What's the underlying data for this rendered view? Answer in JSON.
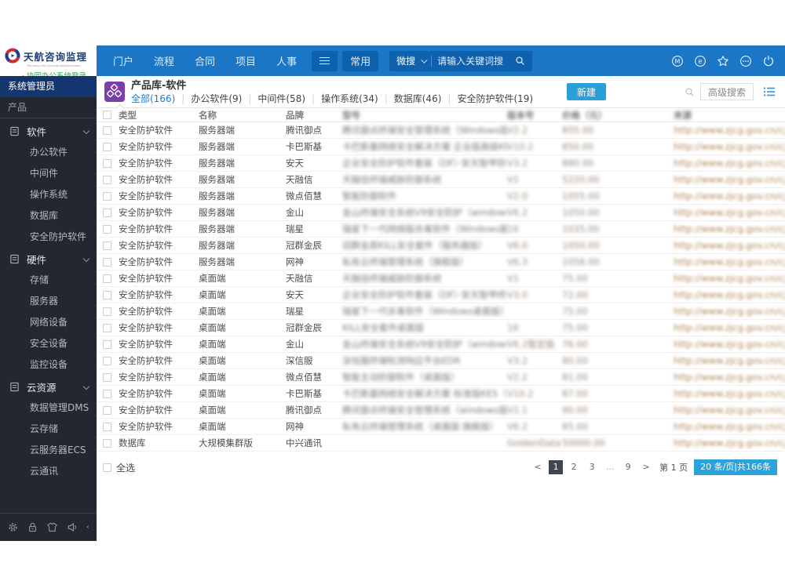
{
  "colors": {
    "topbar": "#1b76c6",
    "topbar_active": "#0e61ac",
    "accent_button": "#2a9fd8",
    "pagination_chip": "#2aa3dc",
    "pagination_active": "#3d4651",
    "sidebar_bg": "#23272f",
    "sidebar_role_bg": "#14366e",
    "app_icon_purple": "#7b3fa8",
    "tab_active": "#1a7bd0",
    "logo_green": "#3aa55a"
  },
  "logo": {
    "title": "天航咨询监理",
    "subtitle": "Tianhang Info Consulting&Supervision",
    "login_link": "· 协同办公系统登录"
  },
  "topbar": {
    "nav": [
      "门户",
      "流程",
      "合同",
      "项目",
      "人事"
    ],
    "quick_menu": "常用",
    "search_engine": "微搜",
    "search_placeholder": "请输入关键词搜",
    "icons": [
      "m-circle",
      "message-circle",
      "favorite-star",
      "more-circle",
      "power"
    ]
  },
  "sidebar": {
    "role": "系统管理员",
    "section": "产品",
    "groups": [
      {
        "label": "软件",
        "items": [
          "办公软件",
          "中间件",
          "操作系统",
          "数据库",
          "安全防护软件"
        ]
      },
      {
        "label": "硬件",
        "items": [
          "存储",
          "服务器",
          "网络设备",
          "安全设备",
          "监控设备"
        ]
      },
      {
        "label": "云资源",
        "items": [
          "数据管理DMS",
          "云存储",
          "云服务器ECS",
          "云通讯"
        ]
      }
    ],
    "footer_icons": [
      "settings-gear",
      "lock",
      "theme-shirt",
      "volume"
    ]
  },
  "content": {
    "title": "产品库-软件",
    "tabs": [
      {
        "label": "全部(166)",
        "active": true
      },
      {
        "label": "办公软件(9)",
        "active": false
      },
      {
        "label": "中间件(58)",
        "active": false
      },
      {
        "label": "操作系统(34)",
        "active": false
      },
      {
        "label": "数据库(46)",
        "active": false
      },
      {
        "label": "安全防护软件(19)",
        "active": false
      }
    ],
    "toolbar": {
      "new_button": "新建",
      "advanced_search": "高级搜索"
    },
    "table": {
      "headers": [
        {
          "label": "类型",
          "blurred": false
        },
        {
          "label": "名称",
          "blurred": false
        },
        {
          "label": "品牌",
          "blurred": false
        },
        {
          "label": "型号",
          "blurred": true
        },
        {
          "label": "版本号",
          "blurred": true
        },
        {
          "label": "价格（元）",
          "blurred": true
        },
        {
          "label": "来源",
          "blurred": true
        }
      ],
      "rows": [
        [
          "安全防护软件",
          "服务器端",
          "腾讯御点",
          "腾讯御点终端安全管理系统（Windows版）",
          "V2.2",
          "855.00",
          "http://www.zjcg.gov.cn/cjqj/"
        ],
        [
          "安全防护软件",
          "服务器端",
          "卡巴斯基",
          "卡巴斯基网络安全解决方案 企业版高级KES/KSV...",
          "V10.2",
          "850.00",
          "http://www.zjcg.gov.cn/cjqj/"
        ],
        [
          "安全防护软件",
          "服务器端",
          "安天",
          "企业安全防护软件套装（DF）·安天智甲防护套装",
          "V3.2",
          "880.00",
          "http://www.zjcg.gov.cn/cjqj/"
        ],
        [
          "安全防护软件",
          "服务器端",
          "天融信",
          "天融信终端威胁防御系统",
          "V1",
          "5220.00",
          "http://www.zjcg.gov.cn/cjqj/"
        ],
        [
          "安全防护软件",
          "服务器端",
          "微点佰慧",
          "智能防御软件",
          "V2.0",
          "1055.00",
          "http://www.zjcg.gov.cn/cjqj/"
        ],
        [
          "安全防护软件",
          "服务器端",
          "金山",
          "金山终端安全系统V9安全防护（windows服务器版）",
          "V6.2",
          "1050.00",
          "http://www.zjcg.gov.cn/cjqj/"
        ],
        [
          "安全防护软件",
          "服务器端",
          "瑞星",
          "瑞星下一代网络版杀毒软件（Windows服务器版）",
          "16",
          "1035.00",
          "http://www.zjcg.gov.cn/cjqj/"
        ],
        [
          "安全防护软件",
          "服务器端",
          "冠群金辰",
          "冠群金辰KILL安全套件（服务器版）",
          "V6.0",
          "1050.00",
          "http://www.zjcg.gov.cn/cjqj/"
        ],
        [
          "安全防护软件",
          "服务器端",
          "网神",
          "私有云终端管理系统（旗舰版）",
          "V6.3",
          "1058.00",
          "http://www.zjcg.gov.cn/cjqj/"
        ],
        [
          "安全防护软件",
          "桌面端",
          "天融信",
          "天融信终端威胁防御系统",
          "V1",
          "75.00",
          "http://www.zjcg.gov.cn/cjqj/"
        ],
        [
          "安全防护软件",
          "桌面端",
          "安天",
          "企业安全防护软件套装（DF）·安天智甲终端版",
          "V3.0",
          "72.00",
          "http://www.zjcg.gov.cn/cjqj/"
        ],
        [
          "安全防护软件",
          "桌面端",
          "瑞星",
          "瑞星下一代杀毒软件（Windows桌面版）",
          "",
          "75.00",
          "http://www.zjcg.gov.cn/cjqj/"
        ],
        [
          "安全防护软件",
          "桌面端",
          "冠群金辰",
          "KILL安全套件桌面版",
          "16",
          "75.00",
          "http://www.zjcg.gov.cn/cjqj/"
        ],
        [
          "安全防护软件",
          "桌面端",
          "金山",
          "金山终端安全系统V9安全防护（windows桌面版）",
          "V6.2暂定版",
          "76.00",
          "http://www.zjcg.gov.cn/cjqj/"
        ],
        [
          "安全防护软件",
          "桌面端",
          "深信服",
          "深信服终端检测响应平台EDR",
          "V3.2",
          "80.00",
          "http://www.zjcg.gov.cn/cjqj/"
        ],
        [
          "安全防护软件",
          "桌面端",
          "微点佰慧",
          "智能主动防御软件（桌面版）",
          "V2.2",
          "81.00",
          "http://www.zjcg.gov.cn/cjqj/"
        ],
        [
          "安全防护软件",
          "桌面端",
          "卡巴斯基",
          "卡巴斯基网络安全解决方案 标准版KES（桌面）· KSS...",
          "V10.2",
          "87.00",
          "http://www.zjcg.gov.cn/cjqj/"
        ],
        [
          "安全防护软件",
          "桌面端",
          "腾讯御点",
          "腾讯御点终端安全管理系统（windows版）· V2.2",
          "V2.1",
          "90.00",
          "http://www.zjcg.gov.cn/cjqj/"
        ],
        [
          "安全防护软件",
          "桌面端",
          "网神",
          "私有云终端管理系统（桌面版·旗舰版）",
          "V6.2",
          "85.00",
          "http://www.zjcg.gov.cn/cjqj/"
        ],
        [
          "数据库",
          "大规模集群版",
          "中兴通讯",
          "",
          "GoldenData v...",
          "50000.00",
          "http://www.zjcg.gov.cn/cjqj/"
        ]
      ]
    },
    "select_all": "全选",
    "pagination": {
      "items": [
        "<",
        "1",
        "2",
        "3",
        "...",
        "9",
        ">"
      ],
      "active": "1",
      "indicator": "第 1 页",
      "summary": "20 条/页|共166条"
    }
  }
}
